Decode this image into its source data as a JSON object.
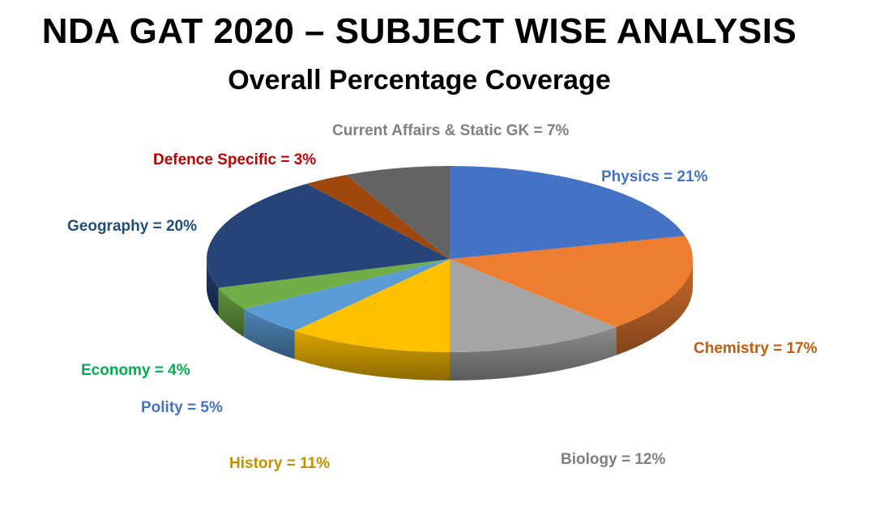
{
  "title": "NDA GAT 2020 – SUBJECT WISE ANALYSIS",
  "subtitle": "Overall Percentage Coverage",
  "chart_data": {
    "type": "pie",
    "title": "NDA GAT 2020 – SUBJECT WISE ANALYSIS",
    "subtitle": "Overall Percentage Coverage",
    "slices": [
      {
        "name": "Physics",
        "value": 21,
        "label": "Physics = 21%",
        "color": "#4472C4",
        "label_color": "#4472C4"
      },
      {
        "name": "Chemistry",
        "value": 17,
        "label": "Chemistry = 17%",
        "color": "#ED7D31",
        "label_color": "#C55A11"
      },
      {
        "name": "Biology",
        "value": 12,
        "label": "Biology = 12%",
        "color": "#A5A5A5",
        "label_color": "#7F7F7F"
      },
      {
        "name": "History",
        "value": 11,
        "label": "History = 11%",
        "color": "#FFC000",
        "label_color": "#BF9000"
      },
      {
        "name": "Polity",
        "value": 5,
        "label": "Polity = 5%",
        "color": "#5B9BD5",
        "label_color": "#4472C4"
      },
      {
        "name": "Economy",
        "value": 4,
        "label": "Economy = 4%",
        "color": "#70AD47",
        "label_color": "#00B050"
      },
      {
        "name": "Geography",
        "value": 20,
        "label": "Geography = 20%",
        "color": "#264478",
        "label_color": "#1F4E79"
      },
      {
        "name": "Defence Specific",
        "value": 3,
        "label": "Defence Specific = 3%",
        "color": "#9E480E",
        "label_color": "#C00000"
      },
      {
        "name": "Current Affairs & Static GK",
        "value": 7,
        "label": "Current Affairs & Static GK = 7%",
        "color": "#636363",
        "label_color": "#808080"
      }
    ]
  }
}
